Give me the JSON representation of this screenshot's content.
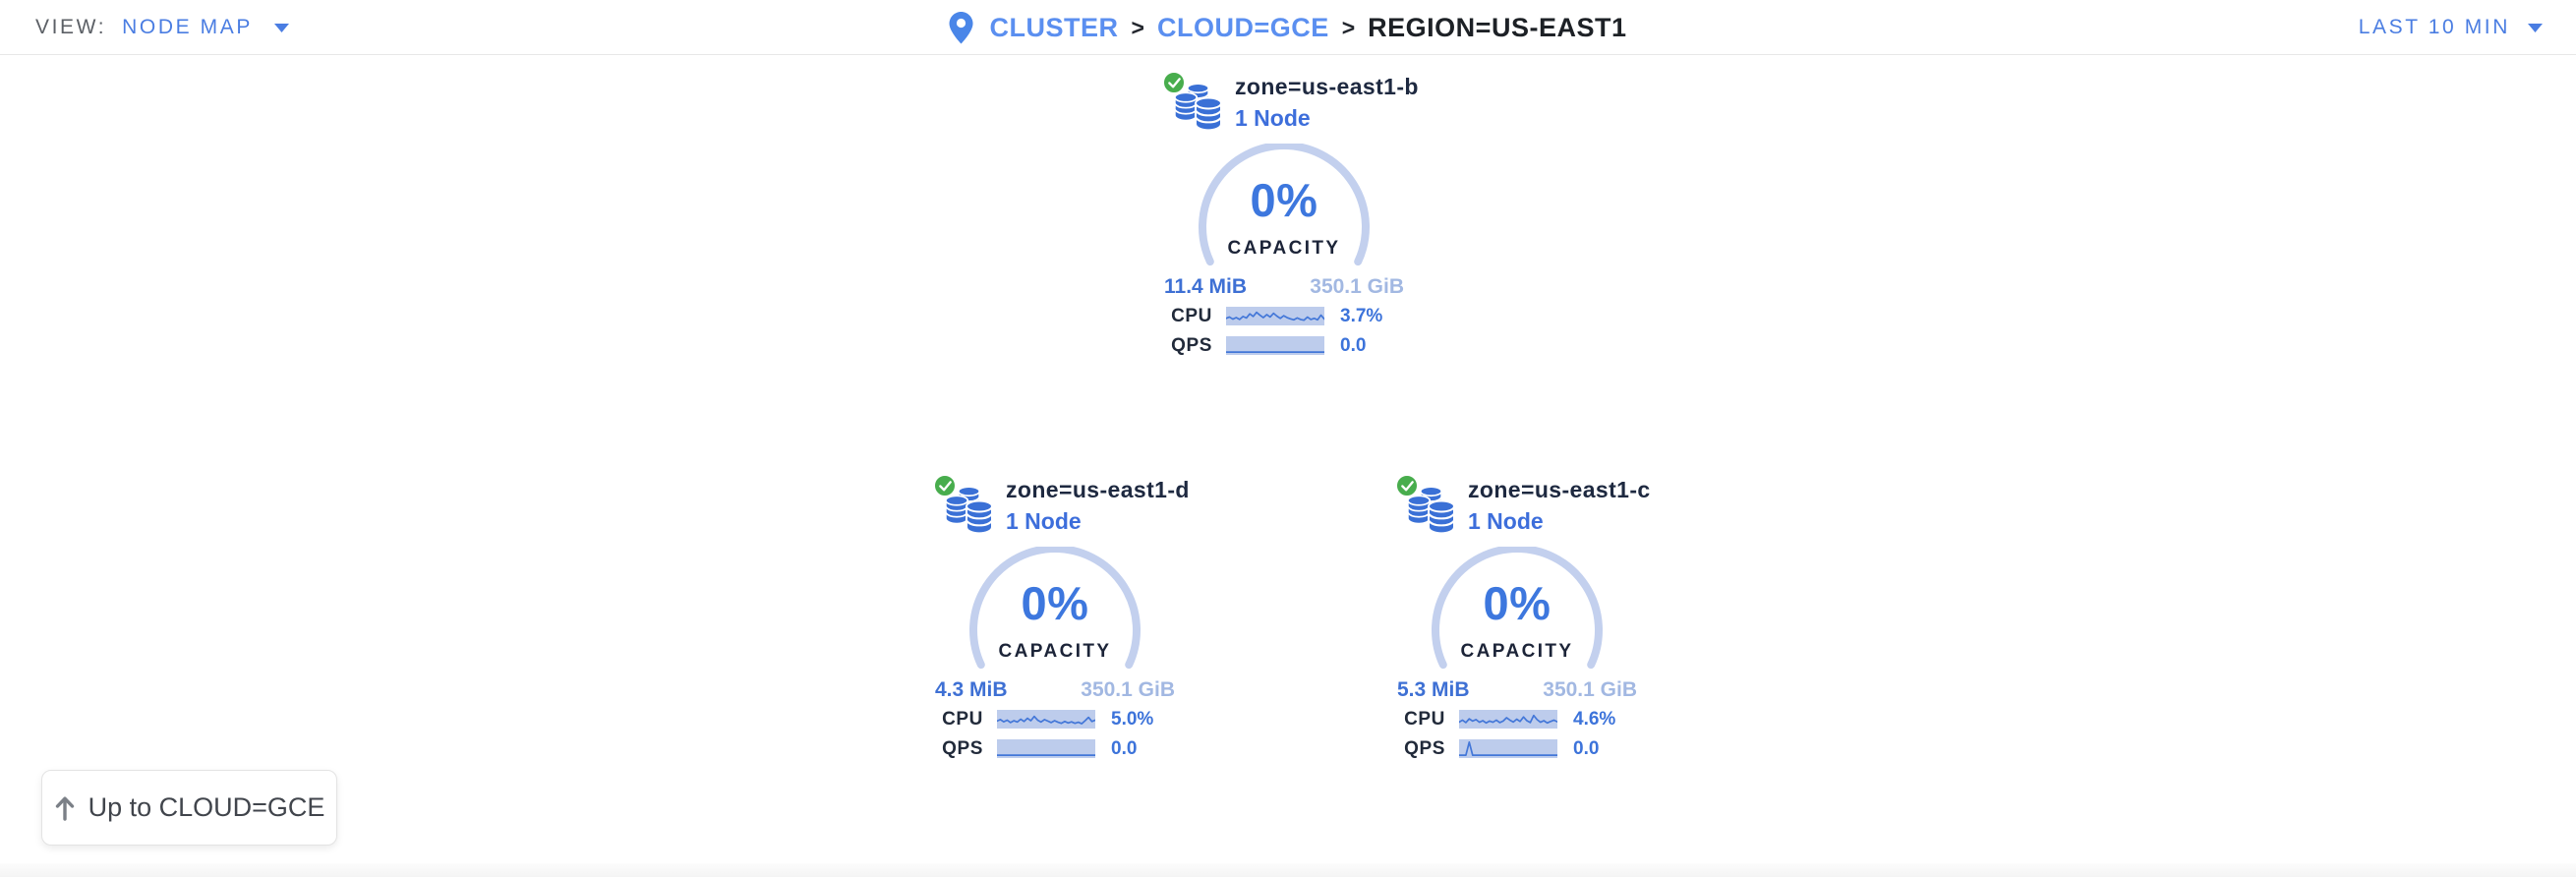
{
  "header": {
    "view_label": "VIEW:",
    "view_value": "NODE MAP",
    "time_range": "LAST 10 MIN",
    "breadcrumb": {
      "cluster": "CLUSTER",
      "separator": ">",
      "cloud": "CLOUD=GCE",
      "region": "REGION=US-EAST1"
    }
  },
  "zones": [
    {
      "name": "zone=us-east1-b",
      "nodes": "1 Node",
      "status": "healthy",
      "capacity_pct": "0%",
      "capacity_label": "CAPACITY",
      "used": "11.4 MiB",
      "total": "350.1 GiB",
      "cpu_label": "CPU",
      "cpu_value": "3.7%",
      "qps_label": "QPS",
      "qps_value": "0.0",
      "cpu_spark": [
        0.62,
        0.55,
        0.66,
        0.58,
        0.68,
        0.52,
        0.6,
        0.38,
        0.52,
        0.3,
        0.45,
        0.58,
        0.42,
        0.55,
        0.35,
        0.5,
        0.62,
        0.48,
        0.58,
        0.65,
        0.7,
        0.6,
        0.68,
        0.72,
        0.55,
        0.68,
        0.62,
        0.7,
        0.45,
        0.66
      ],
      "qps_spark": [
        0.85,
        0.85,
        0.85,
        0.85,
        0.85,
        0.85,
        0.85,
        0.85,
        0.85,
        0.85,
        0.85,
        0.85,
        0.85,
        0.85,
        0.85,
        0.85,
        0.85,
        0.85,
        0.85,
        0.85,
        0.85,
        0.85,
        0.85,
        0.85,
        0.85,
        0.85,
        0.85,
        0.85,
        0.85,
        0.85
      ]
    },
    {
      "name": "zone=us-east1-d",
      "nodes": "1 Node",
      "status": "healthy",
      "capacity_pct": "0%",
      "capacity_label": "CAPACITY",
      "used": "4.3 MiB",
      "total": "350.1 GiB",
      "cpu_label": "CPU",
      "cpu_value": "5.0%",
      "qps_label": "QPS",
      "qps_value": "0.0",
      "cpu_spark": [
        0.6,
        0.52,
        0.64,
        0.55,
        0.68,
        0.58,
        0.65,
        0.5,
        0.62,
        0.45,
        0.58,
        0.35,
        0.55,
        0.65,
        0.52,
        0.6,
        0.68,
        0.58,
        0.66,
        0.72,
        0.62,
        0.7,
        0.64,
        0.72,
        0.66,
        0.74,
        0.58,
        0.4,
        0.62,
        0.55
      ],
      "qps_spark": [
        0.85,
        0.85,
        0.85,
        0.85,
        0.85,
        0.85,
        0.85,
        0.85,
        0.85,
        0.85,
        0.85,
        0.85,
        0.85,
        0.85,
        0.85,
        0.85,
        0.85,
        0.85,
        0.85,
        0.85,
        0.85,
        0.85,
        0.85,
        0.85,
        0.85,
        0.85,
        0.85,
        0.85,
        0.85,
        0.85
      ]
    },
    {
      "name": "zone=us-east1-c",
      "nodes": "1 Node",
      "status": "healthy",
      "capacity_pct": "0%",
      "capacity_label": "CAPACITY",
      "used": "5.3 MiB",
      "total": "350.1 GiB",
      "cpu_label": "CPU",
      "cpu_value": "4.6%",
      "qps_label": "QPS",
      "qps_value": "0.0",
      "cpu_spark": [
        0.66,
        0.55,
        0.68,
        0.48,
        0.6,
        0.52,
        0.66,
        0.58,
        0.7,
        0.6,
        0.66,
        0.55,
        0.68,
        0.6,
        0.42,
        0.55,
        0.65,
        0.5,
        0.62,
        0.38,
        0.58,
        0.68,
        0.3,
        0.52,
        0.66,
        0.58,
        0.7,
        0.62,
        0.55,
        0.64
      ],
      "qps_spark": [
        0.85,
        0.85,
        0.85,
        0.15,
        0.85,
        0.85,
        0.85,
        0.85,
        0.85,
        0.85,
        0.85,
        0.85,
        0.85,
        0.85,
        0.85,
        0.85,
        0.85,
        0.85,
        0.85,
        0.85,
        0.85,
        0.85,
        0.85,
        0.85,
        0.85,
        0.85,
        0.85,
        0.85,
        0.85,
        0.85
      ]
    }
  ],
  "up_button": {
    "label": "Up to CLOUD=GCE"
  },
  "colors": {
    "accent_blue": "#4a7de2",
    "link_blue": "#5b8ff0",
    "navy": "#1e2940",
    "ring_blue": "#c3d0ee",
    "pct_blue": "#3d77de",
    "spark_fill": "#bdccec",
    "spark_line": "#4377d8",
    "used_blue": "#3e70d4",
    "total_blue": "#a2b8e2",
    "healthy_green": "#48ad4f",
    "db_icon_blue": "#3a70d6"
  }
}
